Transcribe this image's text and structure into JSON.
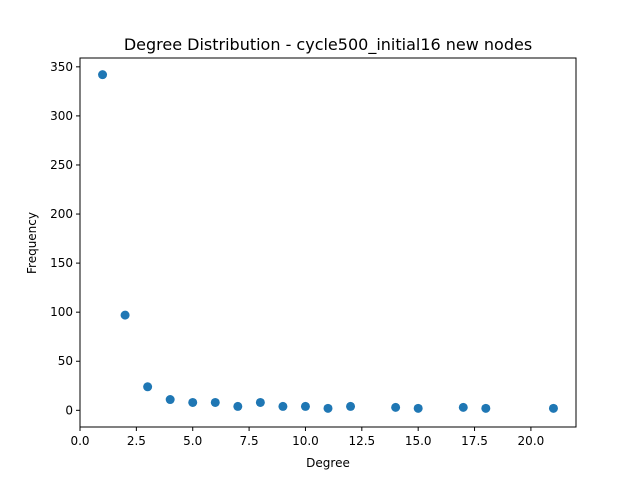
{
  "chart_data": {
    "type": "scatter",
    "title": "Degree Distribution - cycle500_initial16 new nodes",
    "xlabel": "Degree",
    "ylabel": "Frequency",
    "xlim": [
      0,
      22
    ],
    "ylim": [
      -17,
      359
    ],
    "xticks": [
      0,
      2.5,
      5,
      7.5,
      10,
      12.5,
      15,
      17.5,
      20
    ],
    "xtick_labels": [
      "0.0",
      "2.5",
      "5.0",
      "7.5",
      "10.0",
      "12.5",
      "15.0",
      "17.5",
      "20.0"
    ],
    "yticks": [
      0,
      50,
      100,
      150,
      200,
      250,
      300,
      350
    ],
    "ytick_labels": [
      "0",
      "50",
      "100",
      "150",
      "200",
      "250",
      "300",
      "350"
    ],
    "grid": false,
    "marker_color": "#1f77b4",
    "points": [
      {
        "x": 1,
        "y": 342
      },
      {
        "x": 2,
        "y": 97
      },
      {
        "x": 3,
        "y": 24
      },
      {
        "x": 4,
        "y": 11
      },
      {
        "x": 5,
        "y": 8
      },
      {
        "x": 6,
        "y": 8
      },
      {
        "x": 7,
        "y": 4
      },
      {
        "x": 8,
        "y": 8
      },
      {
        "x": 9,
        "y": 4
      },
      {
        "x": 10,
        "y": 4
      },
      {
        "x": 11,
        "y": 2
      },
      {
        "x": 12,
        "y": 4
      },
      {
        "x": 14,
        "y": 3
      },
      {
        "x": 15,
        "y": 2
      },
      {
        "x": 17,
        "y": 3
      },
      {
        "x": 18,
        "y": 2
      },
      {
        "x": 21,
        "y": 2
      }
    ]
  }
}
